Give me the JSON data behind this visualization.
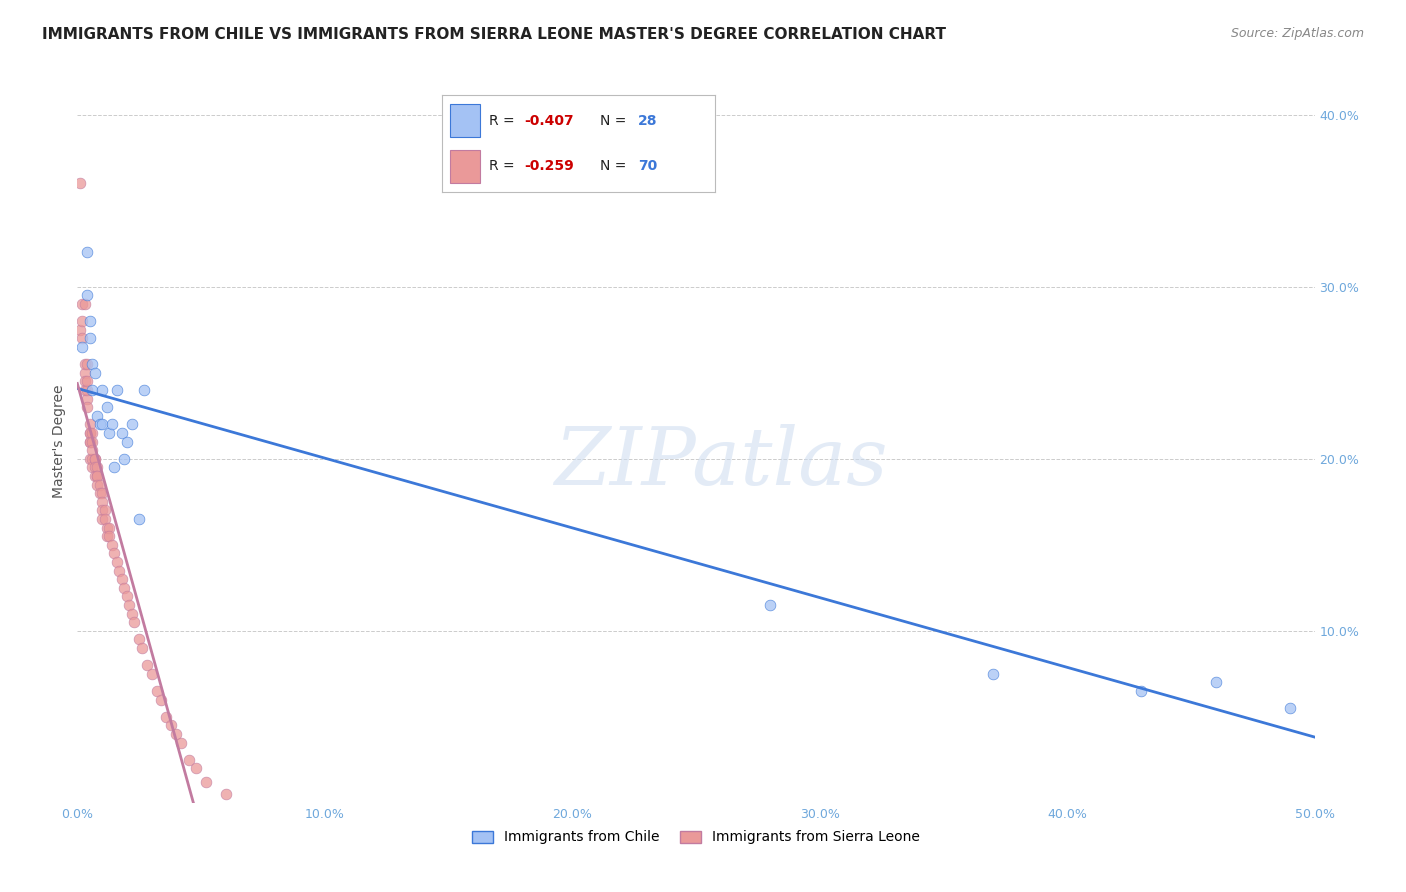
{
  "title": "IMMIGRANTS FROM CHILE VS IMMIGRANTS FROM SIERRA LEONE MASTER'S DEGREE CORRELATION CHART",
  "source": "Source: ZipAtlas.com",
  "ylabel": "Master's Degree",
  "xlim": [
    0.0,
    0.5
  ],
  "ylim": [
    0.0,
    0.42
  ],
  "x_ticks": [
    0.0,
    0.1,
    0.2,
    0.3,
    0.4,
    0.5
  ],
  "x_tick_labels": [
    "0.0%",
    "10.0%",
    "20.0%",
    "30.0%",
    "40.0%",
    "50.0%"
  ],
  "y_ticks": [
    0.0,
    0.1,
    0.2,
    0.3,
    0.4
  ],
  "y_tick_labels": [
    "",
    "10.0%",
    "20.0%",
    "30.0%",
    "40.0%"
  ],
  "legend_label1": "Immigrants from Chile",
  "legend_label2": "Immigrants from Sierra Leone",
  "chile_color": "#a4c2f4",
  "sierra_leone_color": "#ea9999",
  "chile_line_color": "#3c78d8",
  "sierra_leone_line_color": "#c27ba0",
  "watermark_text": "ZIPatlas",
  "background_color": "#ffffff",
  "grid_color": "#cccccc",
  "title_fontsize": 11,
  "source_fontsize": 9,
  "tick_fontsize": 9,
  "tick_color": "#6fa8dc",
  "chile_x": [
    0.002,
    0.004,
    0.004,
    0.005,
    0.005,
    0.006,
    0.006,
    0.007,
    0.008,
    0.009,
    0.01,
    0.01,
    0.012,
    0.013,
    0.014,
    0.015,
    0.016,
    0.018,
    0.019,
    0.02,
    0.022,
    0.025,
    0.027,
    0.28,
    0.37,
    0.43,
    0.46,
    0.49
  ],
  "chile_y": [
    0.265,
    0.32,
    0.295,
    0.27,
    0.28,
    0.255,
    0.24,
    0.25,
    0.225,
    0.22,
    0.24,
    0.22,
    0.23,
    0.215,
    0.22,
    0.195,
    0.24,
    0.215,
    0.2,
    0.21,
    0.22,
    0.165,
    0.24,
    0.115,
    0.075,
    0.065,
    0.07,
    0.055
  ],
  "sierra_leone_x": [
    0.001,
    0.001,
    0.002,
    0.002,
    0.002,
    0.003,
    0.003,
    0.003,
    0.003,
    0.003,
    0.004,
    0.004,
    0.004,
    0.004,
    0.004,
    0.005,
    0.005,
    0.005,
    0.005,
    0.005,
    0.005,
    0.006,
    0.006,
    0.006,
    0.006,
    0.006,
    0.007,
    0.007,
    0.007,
    0.007,
    0.008,
    0.008,
    0.008,
    0.008,
    0.009,
    0.009,
    0.01,
    0.01,
    0.01,
    0.01,
    0.011,
    0.011,
    0.012,
    0.012,
    0.013,
    0.013,
    0.014,
    0.015,
    0.016,
    0.017,
    0.018,
    0.019,
    0.02,
    0.021,
    0.022,
    0.023,
    0.025,
    0.026,
    0.028,
    0.03,
    0.032,
    0.034,
    0.036,
    0.038,
    0.04,
    0.042,
    0.045,
    0.048,
    0.052,
    0.06
  ],
  "sierra_leone_y": [
    0.36,
    0.275,
    0.29,
    0.27,
    0.28,
    0.25,
    0.245,
    0.24,
    0.255,
    0.29,
    0.235,
    0.24,
    0.245,
    0.23,
    0.255,
    0.21,
    0.215,
    0.22,
    0.215,
    0.21,
    0.2,
    0.215,
    0.21,
    0.2,
    0.205,
    0.195,
    0.2,
    0.2,
    0.195,
    0.19,
    0.195,
    0.19,
    0.19,
    0.185,
    0.185,
    0.18,
    0.18,
    0.175,
    0.17,
    0.165,
    0.17,
    0.165,
    0.16,
    0.155,
    0.16,
    0.155,
    0.15,
    0.145,
    0.14,
    0.135,
    0.13,
    0.125,
    0.12,
    0.115,
    0.11,
    0.105,
    0.095,
    0.09,
    0.08,
    0.075,
    0.065,
    0.06,
    0.05,
    0.045,
    0.04,
    0.035,
    0.025,
    0.02,
    0.012,
    0.005
  ],
  "marker_size": 60,
  "marker_alpha": 0.75,
  "legend_r1_color": "-0.407",
  "legend_n1": "28",
  "legend_r2_color": "-0.259",
  "legend_n2": "70"
}
